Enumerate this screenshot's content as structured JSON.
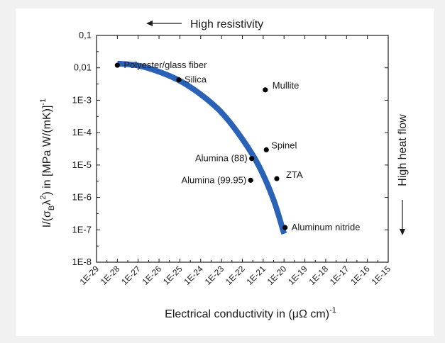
{
  "chart_data": {
    "type": "scatter",
    "xlabel": "Electrical conductivity in (μΩ cm)",
    "xlabel_sup": "-1",
    "ylabel_prefix": "I/(σ",
    "ylabel_sub": "B",
    "ylabel_mid": "λ",
    "ylabel_sup2": "2",
    "ylabel_rest": ") in [MPa W/(mK)]",
    "ylabel_sup": "-1",
    "x_scale": "log",
    "y_scale": "log",
    "xlim_exp": [
      -29,
      -15
    ],
    "ylim_exp": [
      -8,
      -1
    ],
    "x_ticks": [
      "1E-29",
      "1E-28",
      "1E-27",
      "1E-26",
      "1E-25",
      "1E-24",
      "1E-23",
      "1E-22",
      "1E-21",
      "1E-20",
      "1E-19",
      "1E-18",
      "1E-17",
      "1E-16",
      "1E-15"
    ],
    "y_ticks": [
      "0,1",
      "0,01",
      "1E-3",
      "1E-4",
      "1E-5",
      "1E-6",
      "1E-7",
      "1E-8"
    ],
    "grid": false,
    "annotations": {
      "top": "High resistivity",
      "right": "High heat flow"
    },
    "points": [
      {
        "label": "Polyester/glass fiber",
        "x_exp": -28.0,
        "y_exp": -1.92
      },
      {
        "label": "Silica",
        "x_exp": -25.05,
        "y_exp": -2.37
      },
      {
        "label": "Mullite",
        "x_exp": -20.9,
        "y_exp": -2.68
      },
      {
        "label": "Spinel",
        "x_exp": -20.85,
        "y_exp": -4.53
      },
      {
        "label": "Alumina (88)",
        "x_exp": -21.55,
        "y_exp": -4.8
      },
      {
        "label": "ZTA",
        "x_exp": -20.35,
        "y_exp": -5.42
      },
      {
        "label": "Alumina (99.95)",
        "x_exp": -21.6,
        "y_exp": -5.47
      },
      {
        "label": "Aluminum nitride",
        "x_exp": -19.95,
        "y_exp": -6.93
      }
    ],
    "trend_curve": {
      "color": "#2a62b8",
      "x_exp": [
        -28.0,
        -27.0,
        -26.0,
        -25.0,
        -24.0,
        -23.0,
        -22.0,
        -21.2,
        -20.5,
        -20.0
      ],
      "y_exp": [
        -1.87,
        -1.93,
        -2.12,
        -2.4,
        -2.82,
        -3.38,
        -4.2,
        -5.04,
        -6.08,
        -7.12
      ]
    },
    "point_color": "#000000"
  }
}
